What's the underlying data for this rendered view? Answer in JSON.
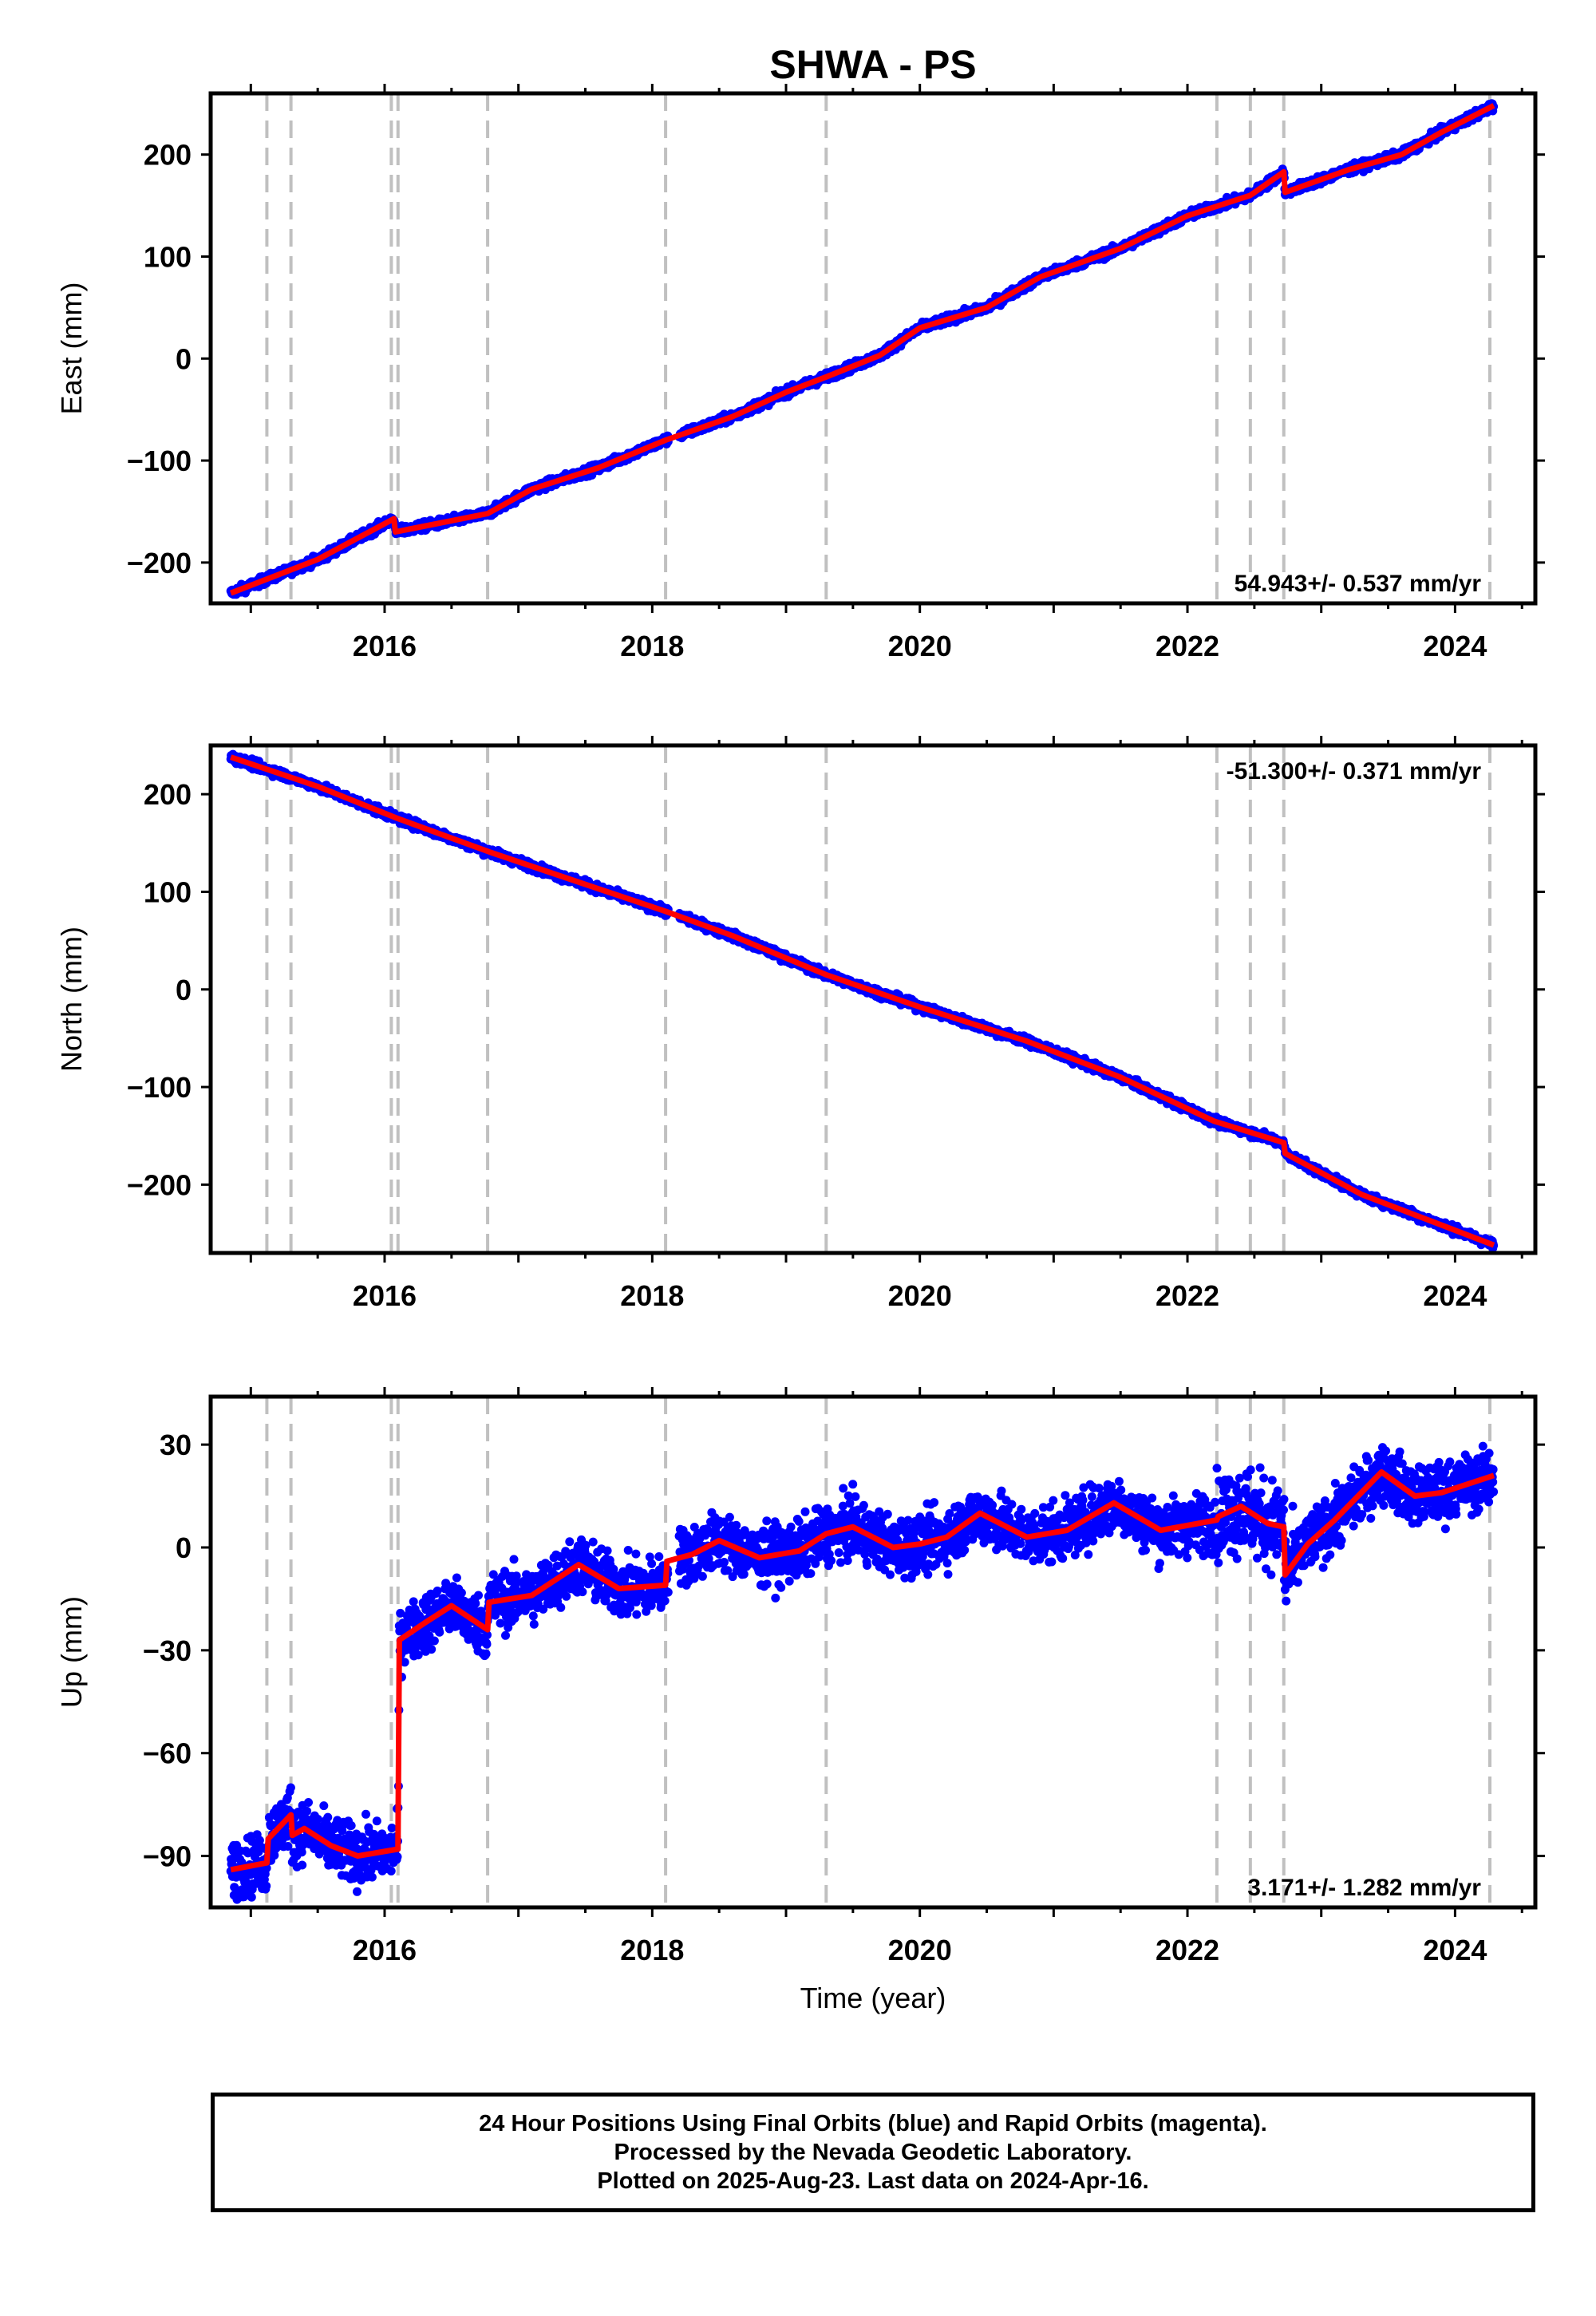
{
  "title": "SHWA - PS",
  "x_axis_label": "Time (year)",
  "footer": {
    "line1": "24 Hour Positions Using Final Orbits (blue) and Rapid Orbits (magenta).",
    "line2": "Processed by the Nevada Geodetic Laboratory.",
    "line3": "Plotted on 2025-Aug-23. Last data on 2024-Apr-16."
  },
  "colors": {
    "points": "#0000ff",
    "model": "#ff0000",
    "steps": "#c0c0c0",
    "frame": "#000000"
  },
  "chart_data": [
    {
      "type": "scatter",
      "ylabel": "East (mm)",
      "rate_text": "54.943+/- 0.537 mm/yr",
      "rate_position": "bottom-right",
      "xlim": [
        2014.7,
        2024.6
      ],
      "ylim": [
        -240,
        260
      ],
      "xticks": [
        2016,
        2018,
        2020,
        2022,
        2024
      ],
      "yticks": [
        -200,
        -100,
        0,
        100,
        200
      ],
      "step_epochs": [
        2015.12,
        2015.3,
        2016.05,
        2016.1,
        2016.77,
        2018.1,
        2019.3,
        2022.22,
        2022.47,
        2022.72,
        2024.26
      ],
      "series": [
        {
          "name": "",
          "role": "model",
          "x": [
            2014.85,
            2015.5,
            2016.07,
            2016.08,
            2016.77,
            2017.1,
            2017.6,
            2018.1,
            2018.6,
            2019.0,
            2019.3,
            2019.7,
            2020.0,
            2020.5,
            2020.9,
            2021.5,
            2022.0,
            2022.47,
            2022.72,
            2022.73,
            2023.2,
            2023.6,
            2023.9,
            2024.29
          ],
          "y": [
            -230,
            -197,
            -157,
            -170,
            -152,
            -128,
            -107,
            -80,
            -57,
            -33,
            -18,
            3,
            30,
            50,
            80,
            108,
            140,
            160,
            183,
            163,
            185,
            200,
            222,
            248
          ]
        },
        {
          "name": "",
          "role": "observations",
          "scatter_mm": 3,
          "daily": true
        }
      ]
    },
    {
      "type": "scatter",
      "ylabel": "North (mm)",
      "rate_text": "-51.300+/- 0.371 mm/yr",
      "rate_position": "top-right",
      "xlim": [
        2014.7,
        2024.6
      ],
      "ylim": [
        -270,
        250
      ],
      "xticks": [
        2016,
        2018,
        2020,
        2022,
        2024
      ],
      "yticks": [
        -200,
        -100,
        0,
        100,
        200
      ],
      "step_epochs": [
        2015.12,
        2015.3,
        2016.05,
        2016.1,
        2016.77,
        2018.1,
        2019.3,
        2022.22,
        2022.47,
        2022.72,
        2024.26
      ],
      "series": [
        {
          "name": "",
          "role": "model",
          "x": [
            2014.85,
            2015.5,
            2016.1,
            2016.8,
            2017.6,
            2018.1,
            2018.6,
            2019.3,
            2020.0,
            2020.8,
            2021.5,
            2022.2,
            2022.72,
            2022.73,
            2023.3,
            2024.29
          ],
          "y": [
            238,
            208,
            175,
            140,
            103,
            80,
            55,
            15,
            -18,
            -53,
            -90,
            -135,
            -157,
            -168,
            -210,
            -262
          ]
        },
        {
          "name": "",
          "role": "observations",
          "scatter_mm": 3,
          "daily": true
        }
      ]
    },
    {
      "type": "scatter",
      "ylabel": "Up (mm)",
      "rate_text": "3.171+/- 1.282 mm/yr",
      "rate_position": "bottom-right",
      "xlim": [
        2014.7,
        2024.6
      ],
      "ylim": [
        -105,
        44
      ],
      "xticks": [
        2016,
        2018,
        2020,
        2022,
        2024
      ],
      "yticks": [
        -90,
        -60,
        -30,
        0,
        30
      ],
      "step_epochs": [
        2015.12,
        2015.3,
        2016.05,
        2016.1,
        2016.77,
        2018.1,
        2019.3,
        2022.22,
        2022.47,
        2022.72,
        2024.26
      ],
      "series": [
        {
          "name": "",
          "role": "model",
          "x": [
            2014.85,
            2015.12,
            2015.13,
            2015.3,
            2015.31,
            2015.4,
            2015.6,
            2015.8,
            2016.1,
            2016.11,
            2016.3,
            2016.5,
            2016.77,
            2016.78,
            2017.1,
            2017.45,
            2017.75,
            2018.1,
            2018.11,
            2018.3,
            2018.5,
            2018.8,
            2019.1,
            2019.3,
            2019.5,
            2019.8,
            2020.0,
            2020.2,
            2020.45,
            2020.8,
            2021.1,
            2021.45,
            2021.8,
            2022.22,
            2022.23,
            2022.4,
            2022.6,
            2022.72,
            2022.73,
            2022.9,
            2023.1,
            2023.45,
            2023.7,
            2023.9,
            2024.29
          ],
          "y": [
            -94,
            -92,
            -85,
            -78,
            -84,
            -82,
            -87,
            -90,
            -88,
            -27,
            -22,
            -17,
            -24,
            -16,
            -14,
            -5,
            -12,
            -11,
            -4,
            -2,
            2,
            -3,
            -1,
            4,
            6,
            0,
            1,
            3,
            10,
            3,
            5,
            13,
            5,
            8,
            9,
            12,
            7,
            6,
            -8,
            1,
            8,
            22,
            15,
            16,
            21
          ]
        },
        {
          "name": "",
          "role": "observations",
          "scatter_mm": 6,
          "daily": true
        }
      ]
    }
  ]
}
